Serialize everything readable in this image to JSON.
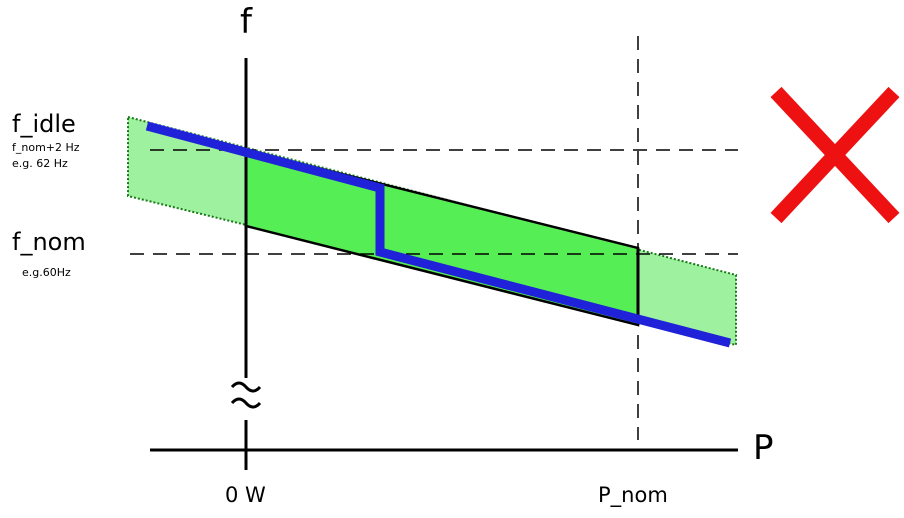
{
  "axes": {
    "y_label": "f",
    "x_label": "P"
  },
  "x_ticks": {
    "zero": "0 W",
    "nominal": "P_nom"
  },
  "y_levels": {
    "idle": {
      "name": "f_idle",
      "formula": "f_nom+2 Hz",
      "example": "e.g. 62 Hz"
    },
    "nominal": {
      "name": "f_nom",
      "example": "e.g.60Hz"
    }
  },
  "symbols": {
    "axis_break": "≈",
    "reject_mark": "cross-mark-icon"
  },
  "colors": {
    "band_light": "#9ef19e",
    "band_dark": "#55ee55",
    "droop_curve": "#1f22d8",
    "cross": "#ee1111",
    "axis": "#000000"
  }
}
